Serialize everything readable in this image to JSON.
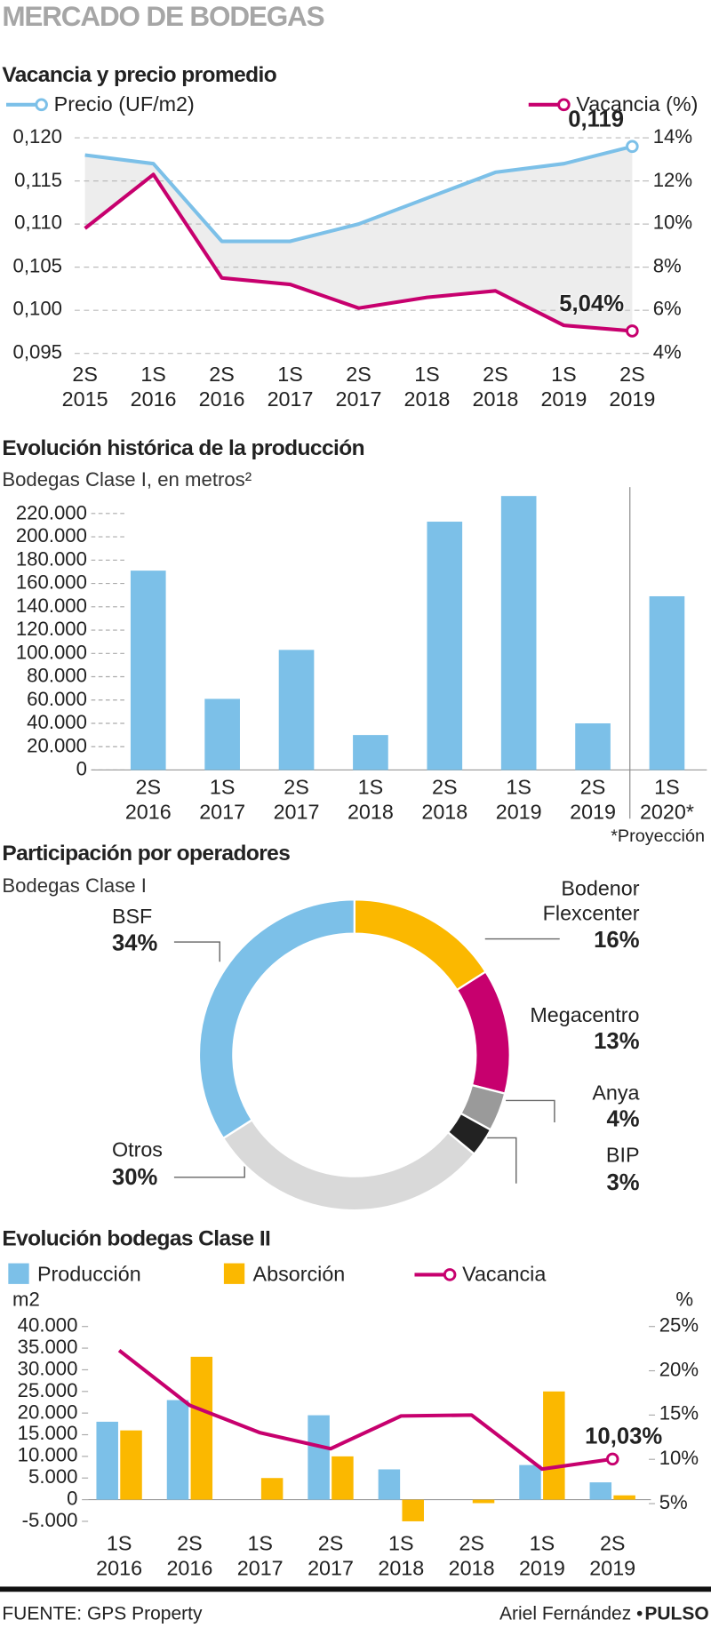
{
  "title": "MERCADO DE BODEGAS",
  "chart_data": [
    {
      "type": "line",
      "title": "Vacancia y precio promedio",
      "categories": [
        "2S 2015",
        "1S 2016",
        "2S 2016",
        "1S 2017",
        "2S 2017",
        "1S 2018",
        "2S 2018",
        "1S 2019",
        "2S 2019"
      ],
      "series": [
        {
          "name": "Precio (UF/m2)",
          "color": "#7cc0e8",
          "values": [
            0.118,
            0.117,
            0.108,
            0.108,
            0.11,
            0.113,
            0.116,
            0.117,
            0.119
          ],
          "value_labels": [
            null,
            null,
            null,
            null,
            null,
            null,
            null,
            null,
            "0,119"
          ]
        },
        {
          "name": "Vacancia (%)",
          "color": "#c7006e",
          "axis": "y2",
          "values": [
            9.8,
            12.3,
            7.5,
            7.2,
            6.1,
            6.6,
            6.9,
            5.3,
            5.04
          ],
          "value_labels": [
            null,
            null,
            null,
            null,
            null,
            null,
            null,
            null,
            "5,04%"
          ]
        }
      ],
      "ylim": [
        0.095,
        0.12
      ],
      "yticks": [
        {
          "value": 0.12,
          "label": "0,120"
        },
        {
          "value": 0.115,
          "label": "0,115"
        },
        {
          "value": 0.11,
          "label": "0,110"
        },
        {
          "value": 0.105,
          "label": "0,105"
        },
        {
          "value": 0.1,
          "label": "0,100"
        },
        {
          "value": 0.095,
          "label": "0,095"
        }
      ],
      "y2lim": [
        4,
        14
      ],
      "y2ticks": [
        {
          "value": 14,
          "label": "14%"
        },
        {
          "value": 12,
          "label": "12%"
        },
        {
          "value": 10,
          "label": "10%"
        },
        {
          "value": 8,
          "label": "8%"
        },
        {
          "value": 6,
          "label": "6%"
        },
        {
          "value": 4,
          "label": "4%"
        }
      ],
      "grid": true
    },
    {
      "type": "bar",
      "title": "Evolución histórica de la producción",
      "subtitle": "Bodegas Clase I, en metros²",
      "categories": [
        "2S 2016",
        "1S 2017",
        "2S 2017",
        "1S 2018",
        "2S 2018",
        "1S 2019",
        "2S 2019",
        "1S 2020*"
      ],
      "values": [
        171000,
        61000,
        103000,
        30000,
        213000,
        235000,
        40000,
        149000
      ],
      "color": "#7cc0e8",
      "ylim": [
        0,
        240000
      ],
      "yticks": [
        0,
        {
          "value": 20000,
          "label": "20.000"
        },
        {
          "value": 40000,
          "label": "40.000"
        },
        {
          "value": 60000,
          "label": "60.000"
        },
        {
          "value": 80000,
          "label": "80.000"
        },
        {
          "value": 100000,
          "label": "100.000"
        },
        {
          "value": 120000,
          "label": "120.000"
        },
        {
          "value": 140000,
          "label": "140.000"
        },
        {
          "value": 160000,
          "label": "160.000"
        },
        {
          "value": 180000,
          "label": "180.000"
        },
        {
          "value": 200000,
          "label": "200.000"
        },
        {
          "value": 220000,
          "label": "220.000"
        }
      ],
      "footnote": "*Proyección"
    },
    {
      "type": "pie",
      "title": "Participación por operadores",
      "subtitle": "Bodegas Clase I",
      "categories": [
        "Bodenor Flexcenter",
        "Megacentro",
        "Anya",
        "BIP",
        "Otros",
        "BSF"
      ],
      "values": [
        16,
        13,
        4,
        3,
        30,
        34
      ],
      "value_labels": [
        "16%",
        "13%",
        "4%",
        "3%",
        "30%",
        "34%"
      ],
      "colors": [
        "#fbb800",
        "#c7006e",
        "#9a9a9a",
        "#222222",
        "#d9d9d9",
        "#7cc0e8"
      ]
    },
    {
      "type": "combo",
      "title": "Evolución bodegas Clase II",
      "categories": [
        "1S 2016",
        "2S 2016",
        "1S 2017",
        "2S 2017",
        "1S 2018",
        "2S 2018",
        "1S 2019",
        "2S 2019"
      ],
      "series": [
        {
          "name": "Producción",
          "type": "bar",
          "color": "#7cc0e8",
          "values": [
            18000,
            23000,
            null,
            19500,
            7000,
            null,
            8000,
            4000
          ]
        },
        {
          "name": "Absorción",
          "type": "bar",
          "color": "#fbb800",
          "values": [
            16000,
            33000,
            5000,
            10000,
            -5000,
            -800,
            25000,
            1000
          ]
        },
        {
          "name": "Vacancia",
          "type": "line",
          "axis": "y2",
          "color": "#c7006e",
          "values": [
            22.3,
            16.1,
            13.0,
            11.2,
            14.9,
            15.0,
            8.9,
            10.03
          ],
          "value_labels": [
            null,
            null,
            null,
            null,
            null,
            null,
            null,
            "10,03%"
          ]
        }
      ],
      "ylabel": "m2",
      "y2label": "%",
      "ylim": [
        -5000,
        40000
      ],
      "yticks": [
        {
          "value": 40000,
          "label": "40.000"
        },
        {
          "value": 35000,
          "label": "35.000"
        },
        {
          "value": 30000,
          "label": "30.000"
        },
        {
          "value": 25000,
          "label": "25.000"
        },
        {
          "value": 20000,
          "label": "20.000"
        },
        {
          "value": 15000,
          "label": "15.000"
        },
        {
          "value": 10000,
          "label": "10.000"
        },
        {
          "value": 5000,
          "label": "5.000"
        },
        0,
        {
          "value": -5000,
          "label": "-5.000"
        }
      ],
      "y2lim": [
        3,
        25
      ],
      "y2ticks": [
        {
          "value": 25,
          "label": "25%"
        },
        {
          "value": 20,
          "label": "20%"
        },
        {
          "value": 15,
          "label": "15%"
        },
        {
          "value": 10,
          "label": "10%"
        },
        {
          "value": 5,
          "label": "5%"
        }
      ]
    }
  ],
  "source": "FUENTE: GPS Property",
  "author": "Ariel Fernández",
  "brand": "PULSO"
}
